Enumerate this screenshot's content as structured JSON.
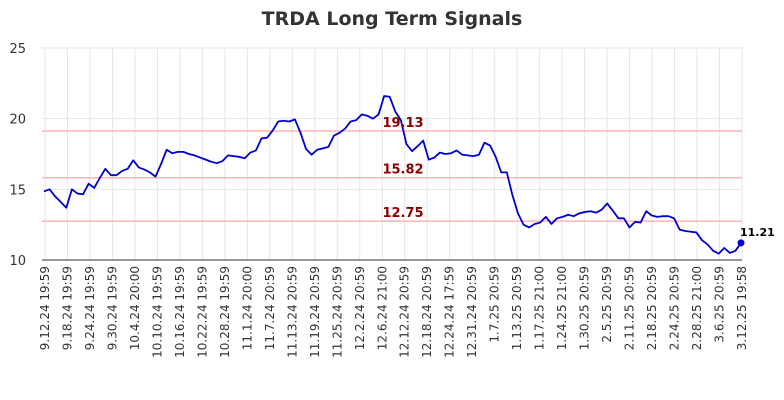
{
  "chart_data": {
    "type": "line",
    "title": "TRDA Long Term Signals",
    "xlabel": "",
    "ylabel": "",
    "ylim": [
      10,
      25
    ],
    "y_ticks": [
      10,
      15,
      20,
      25
    ],
    "grid": true,
    "x_tick_labels": [
      "9.12.24 19:59",
      "9.18.24 19:59",
      "9.24.24 19:59",
      "9.30.24 19:59",
      "10.4.24 20:00",
      "10.10.24 19:59",
      "10.16.24 19:59",
      "10.22.24 19:59",
      "10.28.24 19:59",
      "11.1.24 20:00",
      "11.7.24 20:59",
      "11.13.24 20:59",
      "11.19.24 20:59",
      "11.25.24 20:59",
      "12.2.24 20:59",
      "12.6.24 21:00",
      "12.12.24 20:59",
      "12.18.24 20:59",
      "12.24.24 17:59",
      "12.31.24 20:59",
      "1.7.25 20:59",
      "1.13.25 20:59",
      "1.17.25 21:00",
      "1.24.25 21:00",
      "1.30.25 20:59",
      "2.5.25 20:59",
      "2.11.25 20:59",
      "2.18.25 20:59",
      "2.24.25 20:59",
      "2.28.25 21:00",
      "3.6.25 20:59",
      "3.12.25 19:58"
    ],
    "levels": [
      {
        "value": 19.13,
        "label": "19.13"
      },
      {
        "value": 15.82,
        "label": "15.82"
      },
      {
        "value": 12.75,
        "label": "12.75"
      }
    ],
    "series": [
      {
        "color": "#0000cc",
        "values": [
          14.85,
          15.0,
          14.5,
          14.1,
          13.7,
          15.0,
          14.7,
          14.65,
          15.4,
          15.1,
          15.8,
          16.45,
          16.0,
          16.0,
          16.3,
          16.45,
          17.05,
          16.55,
          16.4,
          16.2,
          15.9,
          16.8,
          17.8,
          17.55,
          17.65,
          17.65,
          17.5,
          17.4,
          17.25,
          17.1,
          16.95,
          16.85,
          17.0,
          17.4,
          17.35,
          17.3,
          17.2,
          17.6,
          17.75,
          18.6,
          18.65,
          19.15,
          19.8,
          19.85,
          19.8,
          19.95,
          19.0,
          17.85,
          17.45,
          17.8,
          17.9,
          18.0,
          18.8,
          19.0,
          19.3,
          19.8,
          19.9,
          20.3,
          20.2,
          20.0,
          20.3,
          21.6,
          21.55,
          20.5,
          19.9,
          18.2,
          17.7,
          18.05,
          18.45,
          17.1,
          17.25,
          17.6,
          17.5,
          17.55,
          17.75,
          17.45,
          17.4,
          17.35,
          17.45,
          18.3,
          18.1,
          17.3,
          16.2,
          16.2,
          14.6,
          13.3,
          12.5,
          12.3,
          12.55,
          12.65,
          13.05,
          12.55,
          12.95,
          13.05,
          13.2,
          13.1,
          13.3,
          13.4,
          13.45,
          13.35,
          13.55,
          14.0,
          13.5,
          12.95,
          12.95,
          12.3,
          12.7,
          12.65,
          13.45,
          13.15,
          13.05,
          13.1,
          13.1,
          12.95,
          12.15,
          12.05,
          12.0,
          11.95,
          11.4,
          11.1,
          10.65,
          10.45,
          10.85,
          10.5,
          10.65,
          11.21
        ]
      }
    ],
    "last_point_label": "11.21"
  }
}
